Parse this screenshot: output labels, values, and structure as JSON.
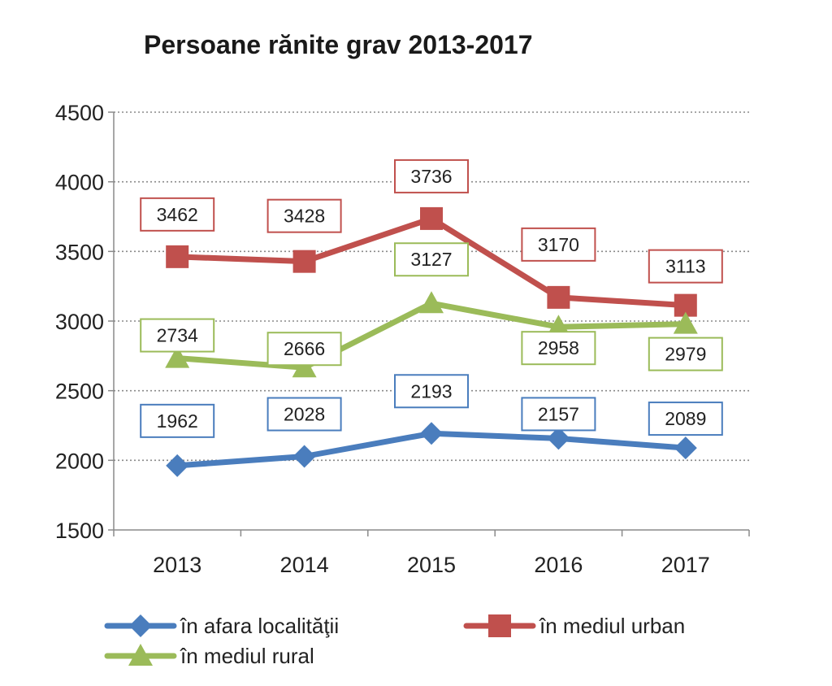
{
  "chart_data": {
    "type": "line",
    "title": "Persoane rănite grav 2013-2017",
    "xlabel": "",
    "ylabel": "",
    "categories": [
      "2013",
      "2014",
      "2015",
      "2016",
      "2017"
    ],
    "ylim": [
      1500,
      4500
    ],
    "yticks": [
      1500,
      2000,
      2500,
      3000,
      3500,
      4000,
      4500
    ],
    "grid": true,
    "legend_position": "bottom",
    "data_labels": true,
    "series": [
      {
        "name": "în afara localităţii",
        "color": "#4a7dbd",
        "marker": "diamond",
        "values": [
          1962,
          2028,
          2193,
          2157,
          2089
        ]
      },
      {
        "name": "în mediul urban",
        "color": "#c0504d",
        "marker": "square",
        "values": [
          3462,
          3428,
          3736,
          3170,
          3113
        ]
      },
      {
        "name": "în mediul rural",
        "color": "#9bbb59",
        "marker": "triangle",
        "values": [
          2734,
          2666,
          3127,
          2958,
          2979
        ]
      }
    ]
  }
}
